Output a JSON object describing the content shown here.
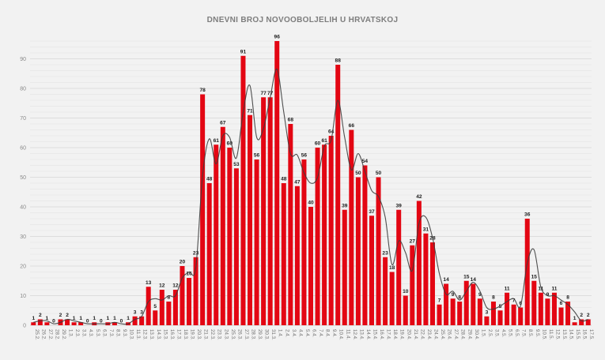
{
  "header": {
    "title": "DNEVNI BROJ NOVOOBOLJELIH U HRVATSKOJ"
  },
  "colors": {
    "background": "#f2f2f2",
    "bar": "#e30613",
    "trend_line": "#3d3d3d",
    "grid_minor": "#e9e9e9",
    "grid_major": "#dddddd",
    "value_label": "#1b1b1b",
    "axis_label": "#8a8a8a",
    "title": "#7d7d7d"
  },
  "chart_data": {
    "type": "bar",
    "title": "DNEVNI BROJ NOVOOBOLJELIH U HRVATSKOJ",
    "xlabel": "",
    "ylabel": "",
    "ylim": [
      0,
      96
    ],
    "yticks": [
      0,
      10,
      20,
      30,
      40,
      50,
      60,
      70,
      80,
      90
    ],
    "grid": "minor horizontal every 2, major every 10, on",
    "legend_position": "none",
    "value_labels": true,
    "categories": [
      "25.2.",
      "26.2.",
      "27.2.",
      "28.2.",
      "29.2.",
      "1.3.",
      "2.3.",
      "3.3.",
      "4.3.",
      "5.3.",
      "6.3.",
      "7.3.",
      "8.3.",
      "9.3.",
      "10.3.",
      "11.3.",
      "12.3.",
      "13.3.",
      "14.3.",
      "15.3.",
      "16.3.",
      "17.3.",
      "18.3.",
      "19.3.",
      "20.3.",
      "21.3.",
      "22.3.",
      "23.3.",
      "24.3.",
      "25.3.",
      "26.3.",
      "27.3.",
      "28.3.",
      "29.3.",
      "30.3.",
      "31.3.",
      "1.4.",
      "2.4.",
      "3.4.",
      "4.4.",
      "5.4.",
      "6.4.",
      "7.4.",
      "8.4.",
      "9.4.",
      "10.4.",
      "11.4.",
      "12.4.",
      "13.4.",
      "14.4.",
      "15.4.",
      "16.4.",
      "17.4.",
      "18.4.",
      "19.4.",
      "20.4.",
      "21.4.",
      "22.4.",
      "23.4.",
      "24.4.",
      "25.4.",
      "26.4.",
      "27.4.",
      "28.4.",
      "29.4.",
      "30.4.",
      "1.5.",
      "2.5.",
      "3.5.",
      "4.5.",
      "5.5.",
      "6.5.",
      "7.5.",
      "8.5.",
      "9.5.",
      "10.5.",
      "11.5.",
      "12.5.",
      "13.5.",
      "14.5.",
      "15.5.",
      "16.5.",
      "17.5."
    ],
    "values": [
      1,
      2,
      1,
      0,
      2,
      2,
      1,
      1,
      0,
      1,
      0,
      1,
      1,
      0,
      1,
      3,
      3,
      13,
      5,
      12,
      8,
      12,
      20,
      16,
      23,
      78,
      48,
      61,
      67,
      60,
      53,
      91,
      71,
      56,
      77,
      77,
      96,
      48,
      68,
      47,
      56,
      40,
      60,
      61,
      64,
      88,
      39,
      66,
      50,
      54,
      37,
      50,
      23,
      18,
      39,
      10,
      27,
      42,
      31,
      28,
      7,
      14,
      9,
      8,
      15,
      14,
      9,
      3,
      8,
      5,
      11,
      7,
      6,
      36,
      15,
      11,
      9,
      11,
      6,
      8,
      1,
      2,
      2
    ],
    "line_overlay": {
      "description": "smoothed trend line, trailing 2-day moving average of daily values",
      "type": "trailing_moving_average",
      "window": 2
    }
  }
}
